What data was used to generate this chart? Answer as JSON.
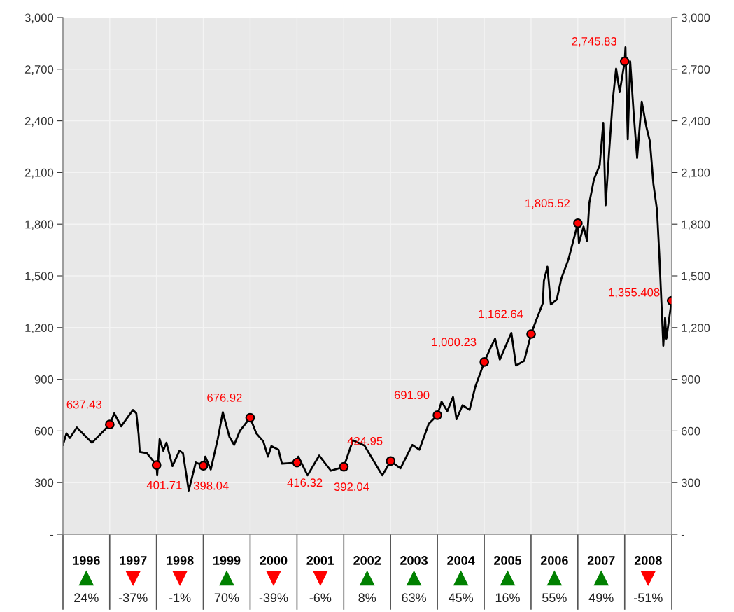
{
  "chart_data": {
    "type": "line",
    "series": [
      {
        "color": "#000000",
        "x": [
          "1996-01-01",
          "1996-01-28",
          "1996-02-24",
          "1996-04-18",
          "1996-07-18",
          "1996-08-15",
          "1996-10-18",
          "1996-12-31",
          "1997-02-04",
          "1997-03-30",
          "1997-06-30",
          "1997-07-26",
          "1997-08-13",
          "1997-08-22",
          "1997-10-16",
          "1997-12-31",
          "1998-01-05",
          "1998-01-24",
          "1998-02-21",
          "1998-03-18",
          "1998-05-04",
          "1998-06-28",
          "1998-07-25",
          "1998-09-08",
          "1998-11-02",
          "1998-12-31",
          "1999-01-15",
          "1999-02-27",
          "1999-04-22",
          "1999-06-01",
          "1999-07-22",
          "1999-08-28",
          "1999-10-12",
          "1999-12-31",
          "2000-02-17",
          "2000-04-12",
          "2000-05-18",
          "2000-06-14",
          "2000-08-08",
          "2000-09-04",
          "2000-12-31",
          "2001-01-10",
          "2001-03-23",
          "2001-06-22",
          "2001-09-21",
          "2001-12-31",
          "2002-03-12",
          "2002-06-10",
          "2002-10-27",
          "2002-12-31",
          "2003-03-18",
          "2003-06-18",
          "2003-08-12",
          "2003-10-24",
          "2003-12-31",
          "2004-02-01",
          "2004-03-17",
          "2004-05-01",
          "2004-05-28",
          "2004-07-14",
          "2004-09-07",
          "2004-10-22",
          "2004-12-31",
          "2005-02-17",
          "2005-03-25",
          "2005-05-01",
          "2005-07-30",
          "2005-09-04",
          "2005-11-07",
          "2005-12-31",
          "2006-02-06",
          "2006-04-01",
          "2006-04-10",
          "2006-05-07",
          "2006-06-03",
          "2006-07-19",
          "2006-08-24",
          "2006-10-18",
          "2006-12-31",
          "2007-01-08",
          "2007-02-13",
          "2007-03-12",
          "2007-03-30",
          "2007-05-05",
          "2007-06-19",
          "2007-07-17",
          "2007-08-04",
          "2007-09-01",
          "2007-09-28",
          "2007-10-25",
          "2007-11-22",
          "2007-12-31",
          "2008-01-06",
          "2008-01-24",
          "2008-02-12",
          "2008-03-10",
          "2008-04-06",
          "2008-05-12",
          "2008-06-18",
          "2008-07-15",
          "2008-08-11",
          "2008-09-08",
          "2008-09-26",
          "2008-10-14",
          "2008-10-27",
          "2008-11-10",
          "2008-11-20",
          "2008-12-31"
        ],
        "values": [
          519,
          586,
          559,
          620,
          552,
          532,
          580,
          637.43,
          702,
          627,
          722,
          702,
          580,
          478,
          471,
          401.71,
          342,
          552,
          485,
          532,
          396,
          485,
          471,
          254,
          417,
          398.04,
          451,
          376,
          552,
          709,
          566,
          519,
          600,
          676.92,
          586,
          539,
          451,
          512,
          491,
          410,
          416.32,
          451,
          342,
          457,
          369,
          392.04,
          546,
          515,
          342,
          424.95,
          383,
          519,
          491,
          641,
          691.9,
          770,
          715,
          797,
          668,
          749,
          722,
          858,
          1000.23,
          1082,
          1136,
          1014,
          1170,
          980,
          1007,
          1162.64,
          1238,
          1340,
          1471,
          1553,
          1334,
          1362,
          1485,
          1595,
          1805.52,
          1690,
          1786,
          1704,
          1923,
          2060,
          2142,
          2389,
          1910,
          2225,
          2512,
          2704,
          2567,
          2745.83,
          2828,
          2293,
          2745,
          2444,
          2184,
          2512,
          2362,
          2280,
          2033,
          1882,
          1622,
          1320,
          1095,
          1258,
          1136,
          1355.408
        ]
      },
      {
        "type": "scatter",
        "color": "#ff0000",
        "marker": "circle",
        "x": [
          "1996-12-31",
          "1997-12-31",
          "1998-12-31",
          "1999-12-31",
          "2000-12-31",
          "2001-12-31",
          "2002-12-31",
          "2003-12-31",
          "2004-12-31",
          "2005-12-31",
          "2006-12-31",
          "2007-12-31",
          "2008-12-31"
        ],
        "values": [
          637.43,
          401.71,
          398.04,
          676.92,
          416.32,
          392.04,
          424.95,
          691.9,
          1000.23,
          1162.64,
          1805.52,
          2745.83,
          1355.408
        ],
        "value_labels": [
          "637.43",
          "401.71",
          "398.04",
          "676.92",
          "416.32",
          "392.04",
          "424.95",
          "691.90",
          "1,000.23",
          "1,162.64",
          "1,805.52",
          "2,745.83",
          "1,355.408"
        ]
      }
    ],
    "xlim": [
      "1996-01-01",
      "2009-01-01"
    ],
    "xticks": [
      {
        "value": "1996-07-01",
        "label": "1996"
      },
      {
        "value": "1997-07-01",
        "label": "1997"
      },
      {
        "value": "1998-07-01",
        "label": "1998"
      },
      {
        "value": "1999-07-01",
        "label": "1999"
      },
      {
        "value": "2000-07-01",
        "label": "2000"
      },
      {
        "value": "2001-07-01",
        "label": "2001"
      },
      {
        "value": "2002-07-01",
        "label": "2002"
      },
      {
        "value": "2003-07-01",
        "label": "2003"
      },
      {
        "value": "2004-07-01",
        "label": "2004"
      },
      {
        "value": "2005-07-01",
        "label": "2005"
      },
      {
        "value": "2006-07-01",
        "label": "2006"
      },
      {
        "value": "2007-07-01",
        "label": "2007"
      },
      {
        "value": "2008-07-01",
        "label": "2008"
      }
    ],
    "ylim": [
      0,
      3000
    ],
    "yticks": [
      {
        "value": 0,
        "label": "-"
      },
      {
        "value": 300,
        "label": "300"
      },
      {
        "value": 600,
        "label": "600"
      },
      {
        "value": 900,
        "label": "900"
      },
      {
        "value": 1200,
        "label": "1,200"
      },
      {
        "value": 1500,
        "label": "1,500"
      },
      {
        "value": 1800,
        "label": "1,800"
      },
      {
        "value": 2100,
        "label": "2,100"
      },
      {
        "value": 2400,
        "label": "2,400"
      },
      {
        "value": 2700,
        "label": "2,700"
      },
      {
        "value": 3000,
        "label": "3,000"
      }
    ],
    "y2lim": [
      0,
      3000
    ],
    "y2ticks": [
      {
        "value": 0,
        "label": "-"
      },
      {
        "value": 300,
        "label": "300"
      },
      {
        "value": 600,
        "label": "600"
      },
      {
        "value": 900,
        "label": "900"
      },
      {
        "value": 1200,
        "label": "1,200"
      },
      {
        "value": 1500,
        "label": "1,500"
      },
      {
        "value": 1800,
        "label": "1,800"
      },
      {
        "value": 2100,
        "label": "2,100"
      },
      {
        "value": 2400,
        "label": "2,400"
      },
      {
        "value": 2700,
        "label": "2,700"
      },
      {
        "value": 3000,
        "label": "3,000"
      }
    ],
    "grid": true,
    "annotations": [
      "24%",
      "-37%",
      "-1%",
      "70%",
      "-39%",
      "-6%",
      "8%",
      "63%",
      "45%",
      "16%",
      "55%",
      "49%",
      "-51%"
    ]
  }
}
